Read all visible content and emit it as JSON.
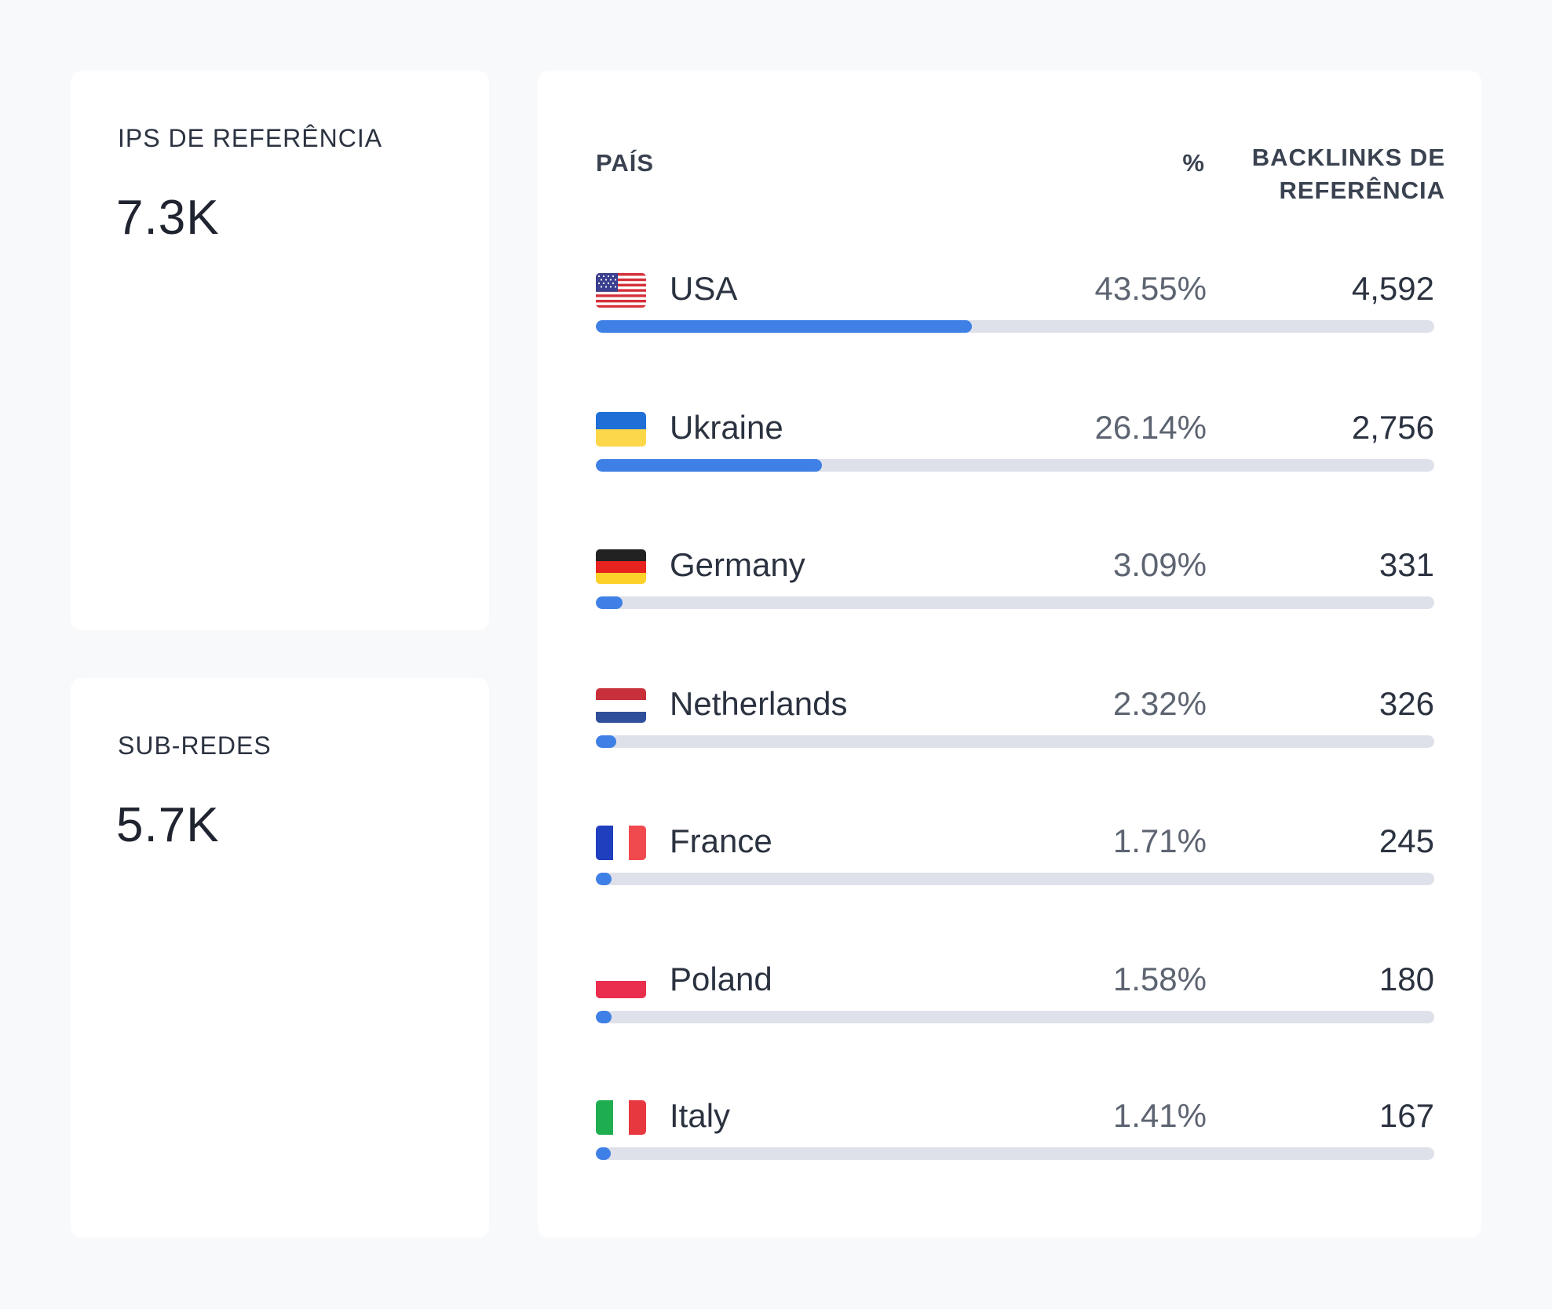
{
  "stats": [
    {
      "label": "IPS DE REFERÊNCIA",
      "value": "7.3K"
    },
    {
      "label": "SUB-REDES",
      "value": "5.7K"
    }
  ],
  "table": {
    "headers": {
      "country": "PAÍS",
      "percent": "%",
      "backlinks_line1": "BACKLINKS DE",
      "backlinks_line2": "REFERÊNCIA"
    },
    "rows": [
      {
        "flag": "usa-flag-icon",
        "name": "USA",
        "percent": "43.55%",
        "count": "4,592",
        "bar_fraction": 0.4355
      },
      {
        "flag": "ukraine-flag-icon",
        "name": "Ukraine",
        "percent": "26.14%",
        "count": "2,756",
        "bar_fraction": 0.2614
      },
      {
        "flag": "germany-flag-icon",
        "name": "Germany",
        "percent": "3.09%",
        "count": "331",
        "bar_fraction": 0.0309
      },
      {
        "flag": "netherlands-flag-icon",
        "name": "Netherlands",
        "percent": "2.32%",
        "count": "326",
        "bar_fraction": 0.0232
      },
      {
        "flag": "france-flag-icon",
        "name": "France",
        "percent": "1.71%",
        "count": "245",
        "bar_fraction": 0.0171
      },
      {
        "flag": "poland-flag-icon",
        "name": "Poland",
        "percent": "1.58%",
        "count": "180",
        "bar_fraction": 0.0158
      },
      {
        "flag": "italy-flag-icon",
        "name": "Italy",
        "percent": "1.41%",
        "count": "167",
        "bar_fraction": 0.0141
      }
    ]
  },
  "colors": {
    "bar_fill": "#3f80e6",
    "bar_track": "#dfe1ea",
    "background": "#f8f9fb"
  }
}
